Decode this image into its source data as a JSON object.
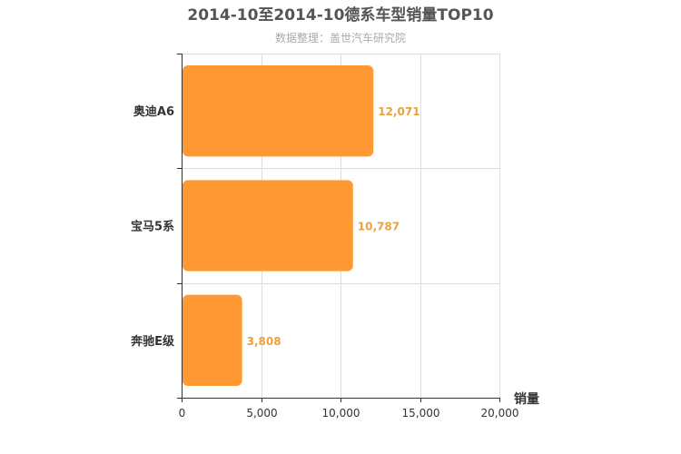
{
  "chart_data": {
    "type": "bar",
    "orientation": "horizontal",
    "title": "2014-10至2014-10德系车型销量TOP10",
    "subtitle": "数据整理：盖世汽车研究院",
    "categories": [
      "奥迪A6",
      "宝马5系",
      "奔驰E级"
    ],
    "values": [
      12071,
      10787,
      3808
    ],
    "value_labels": [
      "12,071",
      "10,787",
      "3,808"
    ],
    "xlabel": "销量",
    "ylabel": "",
    "xlim": [
      0,
      20000
    ],
    "xticks": [
      0,
      5000,
      10000,
      15000,
      20000
    ],
    "xtick_labels": [
      "0",
      "5,000",
      "10,000",
      "15,000",
      "20,000"
    ],
    "grid": true,
    "bar_color": "#ff9933",
    "label_color": "#e8a33d"
  }
}
